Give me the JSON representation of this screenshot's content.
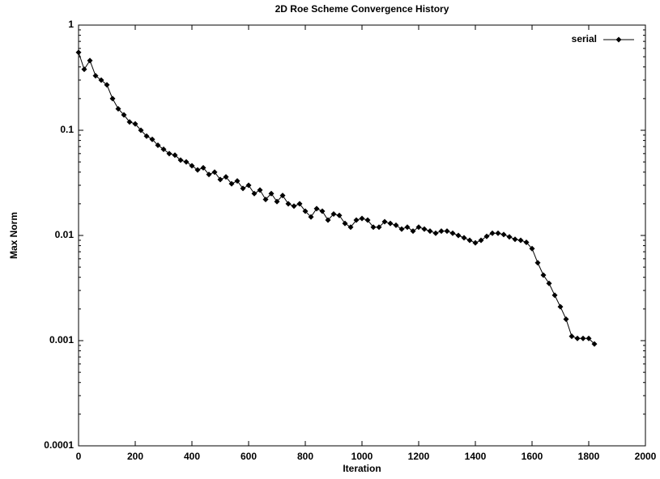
{
  "chart_data": {
    "type": "line",
    "title": "2D Roe Scheme Convergence History",
    "x_label": "Iteration",
    "y_label": "Max Norm",
    "log_y": true,
    "legend": "top-right",
    "xlim": [
      0,
      2000
    ],
    "xticks": [
      0,
      200,
      400,
      600,
      800,
      1000,
      1200,
      1400,
      1600,
      1800,
      2000
    ],
    "ylim": [
      0.0001,
      1
    ],
    "yticks": [
      0.0001,
      0.001,
      0.01,
      0.1,
      1
    ],
    "x": [
      0,
      20,
      40,
      60,
      80,
      100,
      120,
      140,
      160,
      180,
      200,
      220,
      240,
      260,
      280,
      300,
      320,
      340,
      360,
      380,
      400,
      420,
      440,
      460,
      480,
      500,
      520,
      540,
      560,
      580,
      600,
      620,
      640,
      660,
      680,
      700,
      720,
      740,
      760,
      780,
      800,
      820,
      840,
      860,
      880,
      900,
      920,
      940,
      960,
      980,
      1000,
      1020,
      1040,
      1060,
      1080,
      1100,
      1120,
      1140,
      1160,
      1180,
      1200,
      1220,
      1240,
      1260,
      1280,
      1300,
      1320,
      1340,
      1360,
      1380,
      1400,
      1420,
      1440,
      1460,
      1480,
      1500,
      1520,
      1540,
      1560,
      1580,
      1600,
      1620,
      1640,
      1660,
      1680,
      1700,
      1720,
      1740,
      1760,
      1780,
      1800,
      1820
    ],
    "series": [
      {
        "name": "serial",
        "color": "#000000",
        "values": [
          0.55,
          0.38,
          0.46,
          0.33,
          0.3,
          0.27,
          0.2,
          0.16,
          0.14,
          0.12,
          0.115,
          0.1,
          0.088,
          0.082,
          0.072,
          0.066,
          0.06,
          0.058,
          0.052,
          0.05,
          0.046,
          0.042,
          0.044,
          0.038,
          0.04,
          0.034,
          0.036,
          0.031,
          0.033,
          0.028,
          0.03,
          0.025,
          0.027,
          0.022,
          0.025,
          0.021,
          0.024,
          0.02,
          0.019,
          0.02,
          0.017,
          0.015,
          0.018,
          0.017,
          0.014,
          0.016,
          0.0155,
          0.013,
          0.012,
          0.014,
          0.0145,
          0.014,
          0.012,
          0.012,
          0.0135,
          0.013,
          0.0125,
          0.0115,
          0.012,
          0.011,
          0.012,
          0.0115,
          0.011,
          0.0105,
          0.011,
          0.011,
          0.0105,
          0.01,
          0.0095,
          0.009,
          0.0085,
          0.009,
          0.0098,
          0.0105,
          0.0105,
          0.0102,
          0.0097,
          0.0092,
          0.009,
          0.0086,
          0.0075,
          0.0055,
          0.0042,
          0.0035,
          0.0027,
          0.0021,
          0.0016,
          0.0011,
          0.00105,
          0.00105,
          0.00105,
          0.00093
        ]
      }
    ]
  }
}
